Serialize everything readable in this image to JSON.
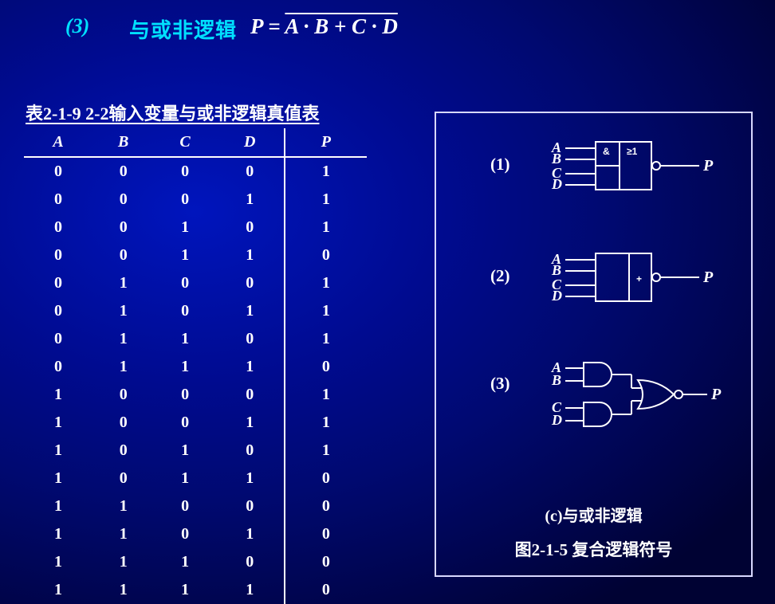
{
  "header": {
    "number": "(3)",
    "label_cn": "与或非逻辑",
    "eq_left": "P",
    "eq_eq": " = ",
    "eq_bar": "A · B +  C · D"
  },
  "table": {
    "title": "表2-1-9  2-2输入变量与或非逻辑真值表",
    "columns": [
      "A",
      "B",
      "C",
      "D",
      "P"
    ],
    "rows": [
      [
        "0",
        "0",
        "0",
        "0",
        "1"
      ],
      [
        "0",
        "0",
        "0",
        "1",
        "1"
      ],
      [
        "0",
        "0",
        "1",
        "0",
        "1"
      ],
      [
        "0",
        "0",
        "1",
        "1",
        "0"
      ],
      [
        "0",
        "1",
        "0",
        "0",
        "1"
      ],
      [
        "0",
        "1",
        "0",
        "1",
        "1"
      ],
      [
        "0",
        "1",
        "1",
        "0",
        "1"
      ],
      [
        "0",
        "1",
        "1",
        "1",
        "0"
      ],
      [
        "1",
        "0",
        "0",
        "0",
        "1"
      ],
      [
        "1",
        "0",
        "0",
        "1",
        "1"
      ],
      [
        "1",
        "0",
        "1",
        "0",
        "1"
      ],
      [
        "1",
        "0",
        "1",
        "1",
        "0"
      ],
      [
        "1",
        "1",
        "0",
        "0",
        "0"
      ],
      [
        "1",
        "1",
        "0",
        "1",
        "0"
      ],
      [
        "1",
        "1",
        "1",
        "0",
        "0"
      ],
      [
        "1",
        "1",
        "1",
        "1",
        "0"
      ]
    ]
  },
  "symbols": {
    "items": [
      {
        "num": "(1)",
        "type": "iec-and-or-not",
        "inputs": [
          "A",
          "B",
          "C",
          "D"
        ],
        "cell1": "&",
        "cell2": "≥1",
        "out": "P"
      },
      {
        "num": "(2)",
        "type": "box-plus-not",
        "inputs": [
          "A",
          "B",
          "C",
          "D"
        ],
        "cell": "+",
        "out": "P"
      },
      {
        "num": "(3)",
        "type": "distinctive",
        "inputs": [
          "A",
          "B",
          "C",
          "D"
        ],
        "out": "P"
      }
    ],
    "caption": "(c)与或非逻辑",
    "fig_title": "图2-1-5  复合逻辑符号"
  },
  "style": {
    "accent_color": "#00e0ff",
    "text_color": "#ffffff",
    "border_color": "#d8d8ff",
    "stroke": "#ffffff",
    "stroke_width": 2,
    "font_italic_size": 18,
    "font_out_size": 20
  }
}
